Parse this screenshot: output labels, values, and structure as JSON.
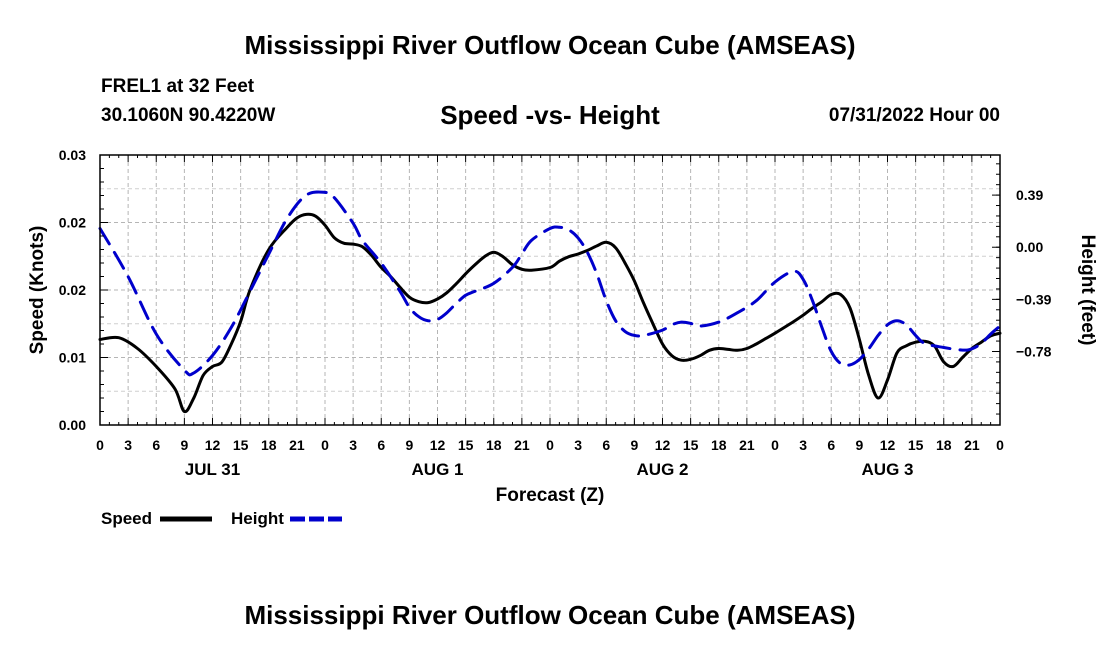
{
  "chart_data": {
    "type": "line",
    "title": "Mississippi River Outflow Ocean Cube (AMSEAS)",
    "subtitle": "Speed -vs- Height",
    "station": "FREL1 at 32 Feet",
    "coordinates": "30.1060N  90.4220W",
    "datetime": "07/31/2022 Hour 00",
    "xlabel": "Forecast (Z)",
    "ylabel_left": "Speed (Knots)",
    "ylabel_right": "Height (feet)",
    "x_range": [
      0,
      96
    ],
    "x_ticks": [
      0,
      3,
      6,
      9,
      12,
      15,
      18,
      21,
      24,
      27,
      30,
      33,
      36,
      39,
      42,
      45,
      48,
      51,
      54,
      57,
      60,
      63,
      66,
      69,
      72,
      75,
      78,
      81,
      84,
      87,
      90,
      93,
      96
    ],
    "x_tick_labels": [
      "0",
      "3",
      "6",
      "9",
      "12",
      "15",
      "18",
      "21",
      "0",
      "3",
      "6",
      "9",
      "12",
      "15",
      "18",
      "21",
      "0",
      "3",
      "6",
      "9",
      "12",
      "15",
      "18",
      "21",
      "0",
      "3",
      "6",
      "9",
      "12",
      "15",
      "18",
      "21",
      "0"
    ],
    "day_labels": [
      {
        "x": 12,
        "label": "JUL 31"
      },
      {
        "x": 36,
        "label": "AUG 1"
      },
      {
        "x": 60,
        "label": "AUG 2"
      },
      {
        "x": 84,
        "label": "AUG 3"
      }
    ],
    "y_left_range": [
      0,
      0.03
    ],
    "y_left_ticks": [
      0,
      0.0075,
      0.015,
      0.0225,
      0.03
    ],
    "y_left_tick_labels": [
      "0.00",
      "0.01",
      "0.02",
      "0.02",
      "0.03"
    ],
    "y_right_range": [
      -1.33,
      0.69
    ],
    "y_right_ticks": [
      -0.78,
      -0.39,
      0.0,
      0.39
    ],
    "y_right_tick_labels": [
      "−0.78",
      "−0.39",
      "0.00",
      "0.39"
    ],
    "grid": true,
    "legend_position": "bottom-left",
    "series": [
      {
        "name": "Speed",
        "axis": "left",
        "color": "#000000",
        "dash": "solid",
        "x": [
          0,
          2,
          4,
          6,
          8,
          9,
          10,
          11,
          12,
          13,
          14,
          15,
          16,
          18,
          20,
          21,
          22,
          23,
          24,
          25,
          26,
          27,
          28,
          29,
          30,
          31,
          32,
          33,
          34,
          35,
          36,
          37,
          38,
          39,
          40,
          41,
          42,
          43,
          44,
          45,
          46,
          48,
          49,
          50,
          51,
          52,
          53,
          54,
          55,
          56,
          57,
          58,
          59,
          60,
          61,
          62,
          63,
          64,
          65,
          66,
          67,
          68,
          69,
          70,
          71,
          72,
          74,
          75,
          76,
          77,
          78,
          79,
          80,
          81,
          82,
          83,
          84,
          85,
          86,
          87,
          88,
          89,
          90,
          91,
          92,
          93,
          94,
          95,
          96
        ],
        "y": [
          0.0095,
          0.0097,
          0.0085,
          0.0065,
          0.004,
          0.0015,
          0.003,
          0.0055,
          0.0065,
          0.007,
          0.009,
          0.0115,
          0.015,
          0.0195,
          0.022,
          0.023,
          0.0234,
          0.0232,
          0.0222,
          0.0208,
          0.0202,
          0.0201,
          0.0198,
          0.0188,
          0.0175,
          0.0165,
          0.0153,
          0.0142,
          0.0137,
          0.0136,
          0.014,
          0.0147,
          0.0157,
          0.0168,
          0.0178,
          0.0187,
          0.0192,
          0.0187,
          0.0178,
          0.0173,
          0.0172,
          0.0175,
          0.0182,
          0.0187,
          0.019,
          0.0194,
          0.0199,
          0.0203,
          0.0197,
          0.018,
          0.016,
          0.0135,
          0.0112,
          0.009,
          0.0077,
          0.0072,
          0.0073,
          0.0077,
          0.0083,
          0.0085,
          0.0084,
          0.0083,
          0.0085,
          0.009,
          0.0096,
          0.0102,
          0.0115,
          0.0122,
          0.013,
          0.0137,
          0.0145,
          0.0145,
          0.013,
          0.0095,
          0.0055,
          0.003,
          0.005,
          0.008,
          0.0088,
          0.0092,
          0.0093,
          0.0088,
          0.007,
          0.0065,
          0.0075,
          0.0085,
          0.0092,
          0.0099,
          0.0102
        ]
      },
      {
        "name": "Height",
        "axis": "right",
        "color": "#0000cc",
        "dash": "dashed",
        "x": [
          0,
          3,
          6,
          9,
          10,
          12,
          14,
          16,
          18,
          20,
          22,
          24,
          25,
          27,
          28,
          30,
          32,
          33,
          34,
          35,
          36,
          37,
          38,
          39,
          40,
          42,
          44,
          45,
          46,
          48,
          49,
          50,
          51,
          52,
          53,
          54,
          55,
          56,
          57,
          58,
          60,
          61,
          62,
          63,
          64,
          66,
          68,
          70,
          72,
          74,
          75,
          76,
          77,
          78,
          79,
          80,
          81,
          82,
          83,
          84,
          85,
          86,
          87,
          88,
          90,
          92,
          93,
          94,
          95,
          96
        ],
        "y": [
          0.14,
          -0.22,
          -0.65,
          -0.92,
          -0.94,
          -0.81,
          -0.6,
          -0.33,
          -0.05,
          0.22,
          0.39,
          0.41,
          0.37,
          0.18,
          0.05,
          -0.12,
          -0.33,
          -0.45,
          -0.52,
          -0.55,
          -0.54,
          -0.49,
          -0.42,
          -0.36,
          -0.33,
          -0.27,
          -0.15,
          -0.05,
          0.05,
          0.14,
          0.15,
          0.13,
          0.07,
          -0.04,
          -0.2,
          -0.4,
          -0.55,
          -0.63,
          -0.66,
          -0.66,
          -0.62,
          -0.58,
          -0.56,
          -0.57,
          -0.59,
          -0.56,
          -0.49,
          -0.4,
          -0.26,
          -0.18,
          -0.24,
          -0.4,
          -0.6,
          -0.78,
          -0.87,
          -0.88,
          -0.84,
          -0.76,
          -0.66,
          -0.58,
          -0.55,
          -0.58,
          -0.66,
          -0.72,
          -0.75,
          -0.77,
          -0.76,
          -0.72,
          -0.65,
          -0.59
        ]
      }
    ]
  }
}
